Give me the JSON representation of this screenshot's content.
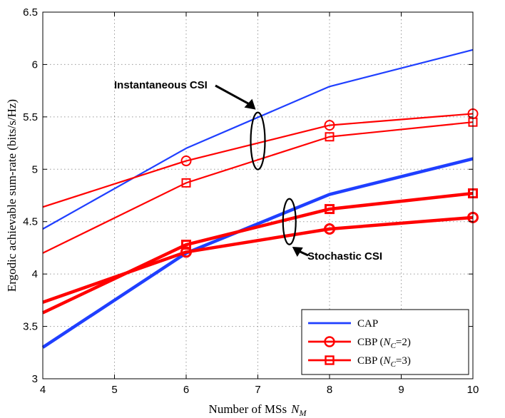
{
  "chart_data": {
    "type": "line",
    "title": "",
    "xlabel": "Number of MSs",
    "xlabel_symbol": "N",
    "xlabel_subscript": "M",
    "ylabel": "Ergodic achievable sum-rate (bits/s/Hz)",
    "xlim": [
      4,
      10
    ],
    "ylim": [
      3,
      6.5
    ],
    "xticks": [
      "4",
      "5",
      "6",
      "7",
      "8",
      "9",
      "10"
    ],
    "yticks": [
      "3",
      "3.5",
      "4",
      "4.5",
      "5",
      "5.5",
      "6",
      "6.5"
    ],
    "grid": true,
    "legend_position": "bottom-right",
    "legend": [
      {
        "label": "CAP",
        "marker": "none",
        "color": "#1f3fff"
      },
      {
        "label": "CBP (",
        "sym": "N",
        "sub": "C",
        "tail": "=2)",
        "marker": "circle",
        "color": "#ff0000"
      },
      {
        "label": "CBP (",
        "sym": "N",
        "sub": "C",
        "tail": "=3)",
        "marker": "square",
        "color": "#ff0000"
      }
    ],
    "series": [
      {
        "name": "CAP - Instantaneous CSI",
        "color": "#1f3fff",
        "marker": "none",
        "weight": "thin",
        "x": [
          4,
          6,
          8,
          10
        ],
        "y": [
          4.43,
          5.2,
          5.79,
          6.14
        ]
      },
      {
        "name": "CBP (NC=2) - Instantaneous CSI",
        "color": "#ff0000",
        "marker": "circle",
        "weight": "thin",
        "x": [
          4,
          6,
          8,
          10
        ],
        "y": [
          4.64,
          5.08,
          5.42,
          5.53
        ]
      },
      {
        "name": "CBP (NC=3) - Instantaneous CSI",
        "color": "#ff0000",
        "marker": "square",
        "weight": "thin",
        "x": [
          4,
          6,
          8,
          10
        ],
        "y": [
          4.2,
          4.87,
          5.31,
          5.45
        ]
      },
      {
        "name": "CAP - Stochastic CSI",
        "color": "#1f3fff",
        "marker": "none",
        "weight": "thick",
        "x": [
          4,
          6,
          8,
          10
        ],
        "y": [
          3.3,
          4.2,
          4.76,
          5.1
        ]
      },
      {
        "name": "CBP (NC=2) - Stochastic CSI",
        "color": "#ff0000",
        "marker": "circle",
        "weight": "thick",
        "x": [
          4,
          6,
          8,
          10
        ],
        "y": [
          3.73,
          4.21,
          4.43,
          4.54
        ]
      },
      {
        "name": "CBP (NC=3) - Stochastic CSI",
        "color": "#ff0000",
        "marker": "square",
        "weight": "thick",
        "x": [
          4,
          6,
          8,
          10
        ],
        "y": [
          3.63,
          4.28,
          4.62,
          4.77
        ]
      }
    ],
    "annotations": [
      {
        "text": "Instantaneous CSI",
        "ellipse_center": [
          7.0,
          5.27
        ],
        "arrow_tip": [
          6.97,
          5.57
        ]
      },
      {
        "text": "Stochastic CSI",
        "ellipse_center": [
          7.44,
          4.5
        ],
        "arrow_tip": [
          7.48,
          4.26
        ]
      }
    ]
  }
}
